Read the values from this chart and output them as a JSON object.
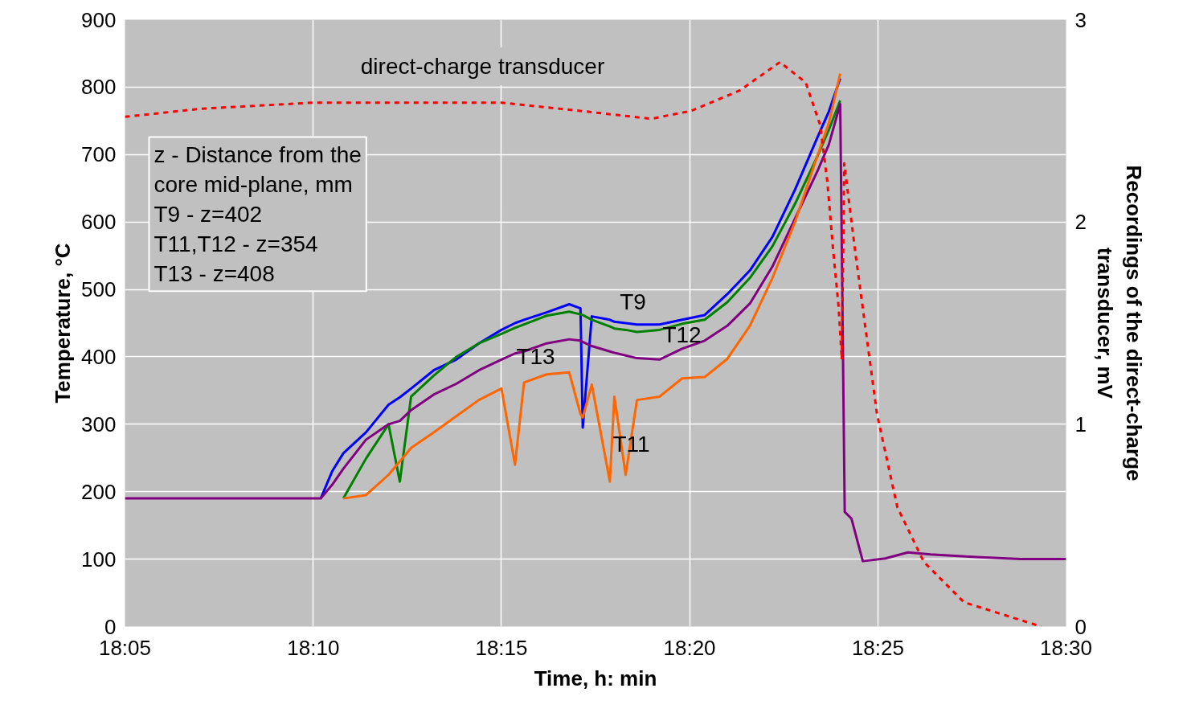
{
  "chart_data": {
    "type": "line",
    "xlabel": "Time, h: min",
    "ylabel": "Temperature, °C",
    "y2label": "Recordings of the direct-charge\ntransducer, mV",
    "x": [
      18.0833,
      18.17,
      18.175,
      18.18,
      18.19,
      18.2,
      18.205,
      18.21,
      18.22,
      18.23,
      18.24,
      18.25,
      18.256,
      18.26,
      18.27,
      18.28,
      18.285,
      18.286,
      18.29,
      18.298,
      18.3,
      18.305,
      18.31,
      18.32,
      18.33,
      18.34,
      18.35,
      18.36,
      18.37,
      18.38,
      18.39,
      18.395,
      18.4,
      18.402,
      18.405,
      18.41,
      18.42,
      18.43,
      18.44,
      18.46,
      18.48,
      18.5
    ],
    "series": [
      {
        "color": "#0000ff",
        "values": [
          null,
          190,
          230,
          257,
          288,
          329,
          340,
          353,
          380,
          396,
          420,
          440,
          450,
          455,
          466,
          478,
          472,
          295,
          460,
          455,
          452,
          450,
          448,
          448,
          455,
          462,
          493,
          528,
          578,
          648,
          726,
          764,
          813,
          null,
          null,
          null,
          null,
          null,
          null,
          null,
          null,
          null
        ]
      },
      {
        "color": "#008000",
        "values": [
          null,
          null,
          null,
          190,
          249,
          300,
          215,
          341,
          372,
          400,
          420,
          434,
          443,
          448,
          461,
          467,
          463,
          462,
          455,
          445,
          442,
          440,
          437,
          440,
          449,
          455,
          481,
          517,
          564,
          627,
          698,
          737,
          780,
          null,
          null,
          null,
          null,
          null,
          null,
          null,
          null,
          null
        ]
      },
      {
        "color": "#800080",
        "values": [
          190,
          190,
          210,
          234,
          277,
          300,
          305,
          321,
          344,
          360,
          380,
          396,
          405,
          408,
          420,
          426,
          424,
          422,
          416,
          408,
          406,
          402,
          398,
          396,
          412,
          424,
          446,
          479,
          534,
          605,
          676,
          715,
          775,
          170,
          160,
          97,
          101,
          110,
          107,
          103,
          100,
          100
        ]
      },
      {
        "color": "#ff6600",
        "values": [
          null,
          null,
          null,
          190,
          195,
          225,
          245,
          265,
          288,
          312,
          336,
          353,
          240,
          362,
          374,
          377,
          315,
          310,
          359,
          215,
          341,
          225,
          336,
          341,
          368,
          370,
          397,
          446,
          517,
          600,
          699,
          747,
          820,
          null,
          null,
          null,
          null,
          null,
          null,
          null,
          null,
          null
        ]
      },
      {
        "color": "#ff0000",
        "axis": "y2",
        "line_style": "dashed",
        "x": [
          18.0833,
          18.1172,
          18.167,
          18.25,
          18.2843,
          18.3164,
          18.3342,
          18.3555,
          18.3733,
          18.3847,
          18.3911,
          18.3943,
          18.3968,
          18.3993,
          18.4007,
          18.4018,
          18.4068,
          18.4163,
          18.4253,
          18.437,
          18.4548,
          18.489
        ],
        "values": [
          2.52,
          2.56,
          2.59,
          2.59,
          2.55,
          2.51,
          2.55,
          2.65,
          2.79,
          2.69,
          2.48,
          2.2,
          1.87,
          1.58,
          1.32,
          2.29,
          1.84,
          1.05,
          0.59,
          0.32,
          0.12,
          0
        ]
      }
    ],
    "xlim": [
      18.0833,
      18.5
    ],
    "xticks": [
      {
        "value": 18.0833,
        "label": "18:05"
      },
      {
        "value": 18.1667,
        "label": "18:10"
      },
      {
        "value": 18.25,
        "label": "18:15"
      },
      {
        "value": 18.3333,
        "label": "18:20"
      },
      {
        "value": 18.4167,
        "label": "18:25"
      },
      {
        "value": 18.5,
        "label": "18:30"
      }
    ],
    "ylim": [
      0,
      900
    ],
    "yticks": [
      0,
      100,
      200,
      300,
      400,
      500,
      600,
      700,
      800,
      900
    ],
    "y2lim": [
      0,
      3
    ],
    "y2ticks": [
      0,
      1,
      2,
      3
    ],
    "grid": true,
    "line_style": "solid",
    "annotations": [
      "direct-charge transducer",
      "z - Distance from the\ncore mid-plane, mm\nT9            - z=402\nT11,T12   - z=354\nT13          - z=408",
      "T9",
      "T12",
      "T13",
      "T11"
    ]
  }
}
